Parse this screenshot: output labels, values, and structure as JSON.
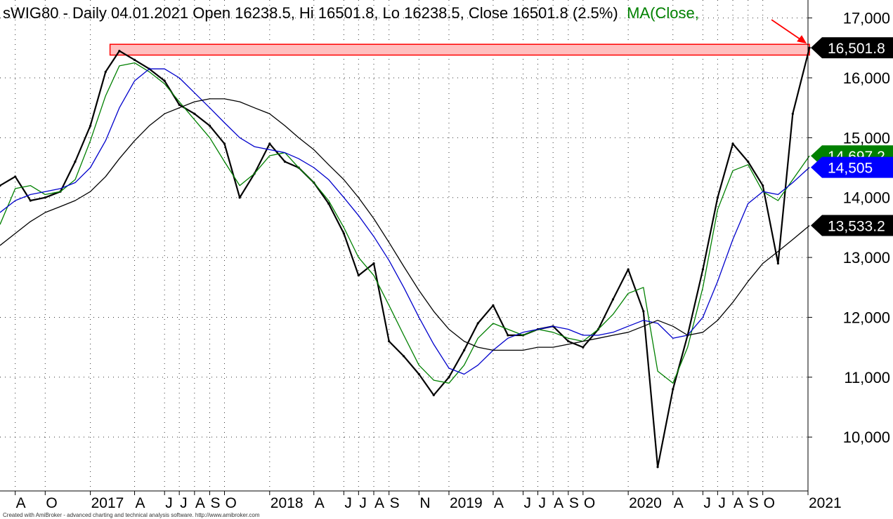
{
  "header": {
    "title": "sWIG80 - Daily 04.01.2021 Open 16238.5, Hi 16501.8, Lo 16238.5, Close 16501.8 (2.5%)",
    "ma_label": "MA(Close,"
  },
  "footer": {
    "credit": "Created with AmiBroker - advanced charting and technical analysis software. http://www.amibroker.com"
  },
  "chart_data": {
    "type": "line",
    "style": "candlestick price with three moving averages",
    "instrument": "sWIG80",
    "period": "Daily",
    "ylim": [
      9100,
      17300
    ],
    "grid": true,
    "y_ticks": [
      {
        "value": 10000,
        "label": "10,000"
      },
      {
        "value": 11000,
        "label": "11,000"
      },
      {
        "value": 12000,
        "label": "12,000"
      },
      {
        "value": 13000,
        "label": "13,000"
      },
      {
        "value": 14000,
        "label": "14,000"
      },
      {
        "value": 15000,
        "label": "15,000"
      },
      {
        "value": 16000,
        "label": "16,000"
      },
      {
        "value": 17000,
        "label": "17,000"
      }
    ],
    "x_ticks": [
      {
        "date": "2016-08-01",
        "label": "A"
      },
      {
        "date": "2016-10-01",
        "label": "O"
      },
      {
        "date": "2017-01-01",
        "label": "2017"
      },
      {
        "date": "2017-04-01",
        "label": "A"
      },
      {
        "date": "2017-06-01",
        "label": "J"
      },
      {
        "date": "2017-07-01",
        "label": "J"
      },
      {
        "date": "2017-08-01",
        "label": "A"
      },
      {
        "date": "2017-09-01",
        "label": "S"
      },
      {
        "date": "2017-10-01",
        "label": "O"
      },
      {
        "date": "2018-01-01",
        "label": "2018"
      },
      {
        "date": "2018-04-01",
        "label": "A"
      },
      {
        "date": "2018-06-01",
        "label": "J"
      },
      {
        "date": "2018-07-01",
        "label": "J"
      },
      {
        "date": "2018-08-01",
        "label": "A"
      },
      {
        "date": "2018-09-01",
        "label": "S"
      },
      {
        "date": "2018-11-01",
        "label": "N"
      },
      {
        "date": "2019-01-01",
        "label": "2019"
      },
      {
        "date": "2019-04-01",
        "label": "A"
      },
      {
        "date": "2019-06-01",
        "label": "J"
      },
      {
        "date": "2019-07-01",
        "label": "J"
      },
      {
        "date": "2019-08-01",
        "label": "A"
      },
      {
        "date": "2019-09-01",
        "label": "S"
      },
      {
        "date": "2019-10-01",
        "label": "O"
      },
      {
        "date": "2020-01-01",
        "label": "2020"
      },
      {
        "date": "2020-04-01",
        "label": "A"
      },
      {
        "date": "2020-06-01",
        "label": "J"
      },
      {
        "date": "2020-07-01",
        "label": "J"
      },
      {
        "date": "2020-08-01",
        "label": "A"
      },
      {
        "date": "2020-09-01",
        "label": "S"
      },
      {
        "date": "2020-10-01",
        "label": "O"
      },
      {
        "date": "2021-01-01",
        "label": "2021"
      }
    ],
    "price": {
      "dates": [
        "2016-07-01",
        "2016-08-01",
        "2016-09-01",
        "2016-10-01",
        "2016-11-01",
        "2016-12-01",
        "2017-01-01",
        "2017-02-01",
        "2017-03-01",
        "2017-04-01",
        "2017-05-01",
        "2017-06-01",
        "2017-07-01",
        "2017-08-01",
        "2017-09-01",
        "2017-10-01",
        "2017-11-01",
        "2017-12-01",
        "2018-01-01",
        "2018-02-01",
        "2018-03-01",
        "2018-04-01",
        "2018-05-01",
        "2018-06-01",
        "2018-07-01",
        "2018-08-01",
        "2018-09-01",
        "2018-10-01",
        "2018-11-01",
        "2018-12-01",
        "2019-01-01",
        "2019-02-01",
        "2019-03-01",
        "2019-04-01",
        "2019-05-01",
        "2019-06-01",
        "2019-07-01",
        "2019-08-01",
        "2019-09-01",
        "2019-10-01",
        "2019-11-01",
        "2019-12-01",
        "2020-01-01",
        "2020-02-01",
        "2020-03-01",
        "2020-04-01",
        "2020-05-01",
        "2020-06-01",
        "2020-07-01",
        "2020-08-01",
        "2020-09-01",
        "2020-10-01",
        "2020-11-01",
        "2020-12-01",
        "2021-01-04"
      ],
      "close": [
        14200,
        14350,
        13950,
        14000,
        14100,
        14600,
        15200,
        16100,
        16450,
        16300,
        16150,
        15950,
        15550,
        15400,
        15200,
        14900,
        14000,
        14400,
        14900,
        14600,
        14500,
        14250,
        13900,
        13400,
        12700,
        12900,
        11600,
        11350,
        11050,
        10700,
        11000,
        11450,
        11900,
        12200,
        11700,
        11700,
        11800,
        11850,
        11600,
        11500,
        11800,
        12300,
        12800,
        12100,
        9500,
        10800,
        11700,
        12800,
        14000,
        14900,
        14600,
        14200,
        12900,
        15400,
        16501.8
      ]
    },
    "ma_series": [
      {
        "color": "#008000",
        "dates": [
          "2016-07-01",
          "2016-08-01",
          "2016-09-01",
          "2016-10-01",
          "2016-11-01",
          "2016-12-01",
          "2017-01-01",
          "2017-02-01",
          "2017-03-01",
          "2017-04-01",
          "2017-05-01",
          "2017-06-01",
          "2017-07-01",
          "2017-08-01",
          "2017-09-01",
          "2017-10-01",
          "2017-11-01",
          "2017-12-01",
          "2018-01-01",
          "2018-02-01",
          "2018-03-01",
          "2018-04-01",
          "2018-05-01",
          "2018-06-01",
          "2018-07-01",
          "2018-08-01",
          "2018-09-01",
          "2018-10-01",
          "2018-11-01",
          "2018-12-01",
          "2019-01-01",
          "2019-02-01",
          "2019-03-01",
          "2019-04-01",
          "2019-05-01",
          "2019-06-01",
          "2019-07-01",
          "2019-08-01",
          "2019-09-01",
          "2019-10-01",
          "2019-11-01",
          "2019-12-01",
          "2020-01-01",
          "2020-02-01",
          "2020-03-01",
          "2020-04-01",
          "2020-05-01",
          "2020-06-01",
          "2020-07-01",
          "2020-08-01",
          "2020-09-01",
          "2020-10-01",
          "2020-11-01",
          "2020-12-01",
          "2021-01-04"
        ],
        "values": [
          13550,
          14150,
          14200,
          14050,
          14100,
          14300,
          14950,
          15700,
          16200,
          16250,
          16100,
          15900,
          15600,
          15300,
          15000,
          14600,
          14200,
          14400,
          14700,
          14750,
          14500,
          14250,
          13950,
          13500,
          13000,
          12700,
          12200,
          11700,
          11200,
          10950,
          10900,
          11200,
          11650,
          11900,
          11800,
          11700,
          11800,
          11750,
          11650,
          11600,
          11800,
          12050,
          12400,
          12500,
          11100,
          10900,
          11500,
          12500,
          13800,
          14450,
          14550,
          14100,
          13950,
          14300,
          14697.2
        ]
      },
      {
        "color": "#0000cc",
        "dates": [
          "2016-07-01",
          "2016-08-01",
          "2016-09-01",
          "2016-10-01",
          "2016-11-01",
          "2016-12-01",
          "2017-01-01",
          "2017-02-01",
          "2017-03-01",
          "2017-04-01",
          "2017-05-01",
          "2017-06-01",
          "2017-07-01",
          "2017-08-01",
          "2017-09-01",
          "2017-10-01",
          "2017-11-01",
          "2017-12-01",
          "2018-01-01",
          "2018-02-01",
          "2018-03-01",
          "2018-04-01",
          "2018-05-01",
          "2018-06-01",
          "2018-07-01",
          "2018-08-01",
          "2018-09-01",
          "2018-10-01",
          "2018-11-01",
          "2018-12-01",
          "2019-01-01",
          "2019-02-01",
          "2019-03-01",
          "2019-04-01",
          "2019-05-01",
          "2019-06-01",
          "2019-07-01",
          "2019-08-01",
          "2019-09-01",
          "2019-10-01",
          "2019-11-01",
          "2019-12-01",
          "2020-01-01",
          "2020-02-01",
          "2020-03-01",
          "2020-04-01",
          "2020-05-01",
          "2020-06-01",
          "2020-07-01",
          "2020-08-01",
          "2020-09-01",
          "2020-10-01",
          "2020-11-01",
          "2020-12-01",
          "2021-01-04"
        ],
        "values": [
          13750,
          13950,
          14050,
          14100,
          14150,
          14250,
          14500,
          14950,
          15500,
          15950,
          16150,
          16150,
          16000,
          15750,
          15500,
          15250,
          15000,
          14850,
          14800,
          14750,
          14650,
          14500,
          14300,
          14000,
          13700,
          13350,
          12950,
          12500,
          12000,
          11550,
          11150,
          11050,
          11200,
          11450,
          11650,
          11750,
          11800,
          11850,
          11800,
          11700,
          11700,
          11750,
          11850,
          11950,
          11900,
          11650,
          11700,
          12000,
          12600,
          13300,
          13900,
          14100,
          14050,
          14250,
          14505
        ]
      },
      {
        "color": "#000000",
        "dates": [
          "2016-07-01",
          "2016-08-01",
          "2016-09-01",
          "2016-10-01",
          "2016-11-01",
          "2016-12-01",
          "2017-01-01",
          "2017-02-01",
          "2017-03-01",
          "2017-04-01",
          "2017-05-01",
          "2017-06-01",
          "2017-07-01",
          "2017-08-01",
          "2017-09-01",
          "2017-10-01",
          "2017-11-01",
          "2017-12-01",
          "2018-01-01",
          "2018-02-01",
          "2018-03-01",
          "2018-04-01",
          "2018-05-01",
          "2018-06-01",
          "2018-07-01",
          "2018-08-01",
          "2018-09-01",
          "2018-10-01",
          "2018-11-01",
          "2018-12-01",
          "2019-01-01",
          "2019-02-01",
          "2019-03-01",
          "2019-04-01",
          "2019-05-01",
          "2019-06-01",
          "2019-07-01",
          "2019-08-01",
          "2019-09-01",
          "2019-10-01",
          "2019-11-01",
          "2019-12-01",
          "2020-01-01",
          "2020-02-01",
          "2020-03-01",
          "2020-04-01",
          "2020-05-01",
          "2020-06-01",
          "2020-07-01",
          "2020-08-01",
          "2020-09-01",
          "2020-10-01",
          "2020-11-01",
          "2020-12-01",
          "2021-01-04"
        ],
        "values": [
          13200,
          13400,
          13600,
          13750,
          13850,
          13950,
          14100,
          14350,
          14650,
          14950,
          15200,
          15400,
          15500,
          15600,
          15650,
          15650,
          15600,
          15500,
          15400,
          15200,
          15000,
          14800,
          14550,
          14300,
          14000,
          13650,
          13250,
          12850,
          12450,
          12100,
          11800,
          11600,
          11500,
          11450,
          11450,
          11450,
          11500,
          11500,
          11550,
          11600,
          11650,
          11700,
          11750,
          11850,
          11950,
          11850,
          11700,
          11750,
          11950,
          12250,
          12600,
          12900,
          13100,
          13300,
          13533.2
        ]
      }
    ],
    "value_tags": [
      {
        "label": "16,501.8",
        "value": 16501.8,
        "color": "#000000"
      },
      {
        "label": "14,697.2",
        "value": 14697.2,
        "color": "#008000"
      },
      {
        "label": "14,505",
        "value": 14505,
        "color": "#0000ff"
      },
      {
        "label": "13,533.2",
        "value": 13533.2,
        "color": "#000000"
      }
    ],
    "resistance_zone": {
      "from_date": "2017-02-10",
      "to_date": "2021-01-04",
      "y_low": 16380,
      "y_high": 16560,
      "fill": "#ffbfbf",
      "stroke": "#ff0000"
    }
  }
}
